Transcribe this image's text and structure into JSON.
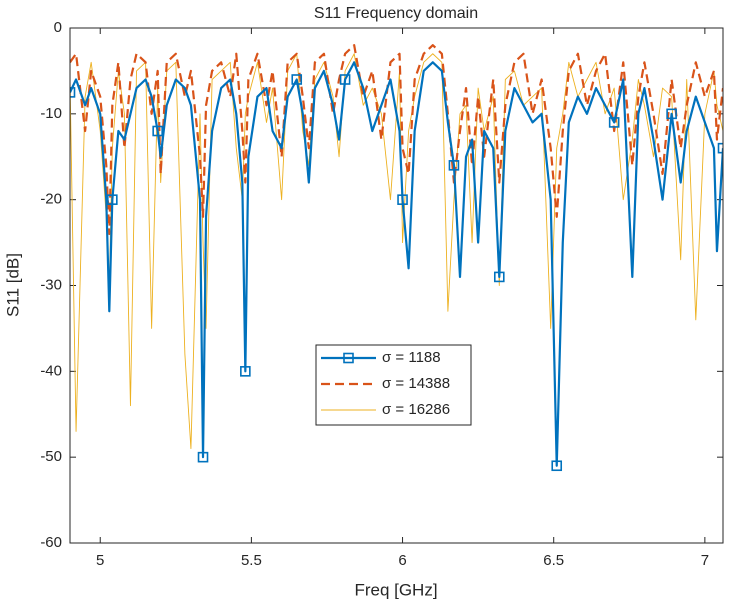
{
  "chart_data": {
    "type": "line",
    "title": "S11 Frequency domain",
    "x_label": "Freq [GHz]",
    "y_label": "S11 [dB]",
    "x": [
      4.9,
      4.92,
      4.95,
      4.97,
      5.0,
      5.02,
      5.03,
      5.04,
      5.06,
      5.08,
      5.1,
      5.12,
      5.15,
      5.17,
      5.19,
      5.2,
      5.22,
      5.25,
      5.28,
      5.3,
      5.33,
      5.34,
      5.35,
      5.37,
      5.4,
      5.43,
      5.45,
      5.47,
      5.48,
      5.49,
      5.52,
      5.55,
      5.57,
      5.6,
      5.62,
      5.65,
      5.67,
      5.69,
      5.71,
      5.74,
      5.77,
      5.79,
      5.81,
      5.84,
      5.87,
      5.9,
      5.93,
      5.96,
      5.99,
      6.0,
      6.02,
      6.04,
      6.07,
      6.1,
      6.13,
      6.15,
      6.17,
      6.19,
      6.21,
      6.23,
      6.25,
      6.27,
      6.3,
      6.32,
      6.34,
      6.37,
      6.4,
      6.43,
      6.46,
      6.49,
      6.51,
      6.53,
      6.55,
      6.58,
      6.61,
      6.64,
      6.67,
      6.7,
      6.73,
      6.76,
      6.78,
      6.8,
      6.83,
      6.86,
      6.89,
      6.92,
      6.94,
      6.97,
      7.0,
      7.03,
      7.04,
      7.06
    ],
    "series": [
      {
        "name": "σ = 1188",
        "color": "#0072BD",
        "style": "solid-marker",
        "values": [
          -7.5,
          -6,
          -9,
          -7,
          -10,
          -20,
          -33,
          -20,
          -12,
          -13,
          -10,
          -7,
          -6,
          -8,
          -12,
          -15,
          -9,
          -6,
          -7,
          -9,
          -20,
          -50,
          -22,
          -12,
          -7,
          -6,
          -10,
          -18,
          -40,
          -15,
          -8,
          -7,
          -12,
          -14,
          -8,
          -6,
          -10,
          -18,
          -7,
          -5,
          -9,
          -13,
          -6,
          -4,
          -7,
          -12,
          -9,
          -6,
          -12,
          -20,
          -28,
          -12,
          -5,
          -4,
          -5,
          -11,
          -16,
          -29,
          -15,
          -13,
          -25,
          -12,
          -14,
          -29,
          -12,
          -7,
          -9,
          -11,
          -10,
          -20,
          -51,
          -25,
          -11,
          -8,
          -10,
          -7,
          -9,
          -11,
          -6,
          -29,
          -10,
          -7,
          -13,
          -20,
          -10,
          -18,
          -12,
          -8,
          -11,
          -14,
          -26,
          -14
        ]
      },
      {
        "name": "σ = 14388",
        "color": "#D95319",
        "style": "dashed",
        "values": [
          -4,
          -3,
          -12,
          -5,
          -8,
          -16,
          -24,
          -9,
          -4,
          -14,
          -6,
          -3,
          -4,
          -10,
          -5,
          -17,
          -4,
          -3,
          -8,
          -5,
          -15,
          -22,
          -9,
          -5,
          -4,
          -8,
          -3,
          -12,
          -18,
          -6,
          -3,
          -9,
          -5,
          -15,
          -4,
          -3,
          -8,
          -14,
          -4,
          -3,
          -10,
          -6,
          -3,
          -2,
          -8,
          -5,
          -13,
          -4,
          -3,
          -14,
          -17,
          -6,
          -3,
          -2,
          -3,
          -10,
          -18,
          -12,
          -7,
          -16,
          -8,
          -15,
          -6,
          -18,
          -9,
          -4,
          -3,
          -10,
          -6,
          -14,
          -22,
          -12,
          -5,
          -3,
          -9,
          -5,
          -3,
          -12,
          -4,
          -16,
          -8,
          -4,
          -10,
          -17,
          -6,
          -14,
          -9,
          -4,
          -8,
          -5,
          -13,
          -7
        ]
      },
      {
        "name": "σ = 16286",
        "color": "#EDB120",
        "style": "thin",
        "values": [
          -6,
          -47,
          -8,
          -4,
          -12,
          -22,
          -30,
          -14,
          -5,
          -10,
          -44,
          -5,
          -4,
          -35,
          -7,
          -18,
          -5,
          -4,
          -38,
          -49,
          -10,
          -25,
          -35,
          -6,
          -5,
          -4,
          -14,
          -20,
          -10,
          -8,
          -4,
          -11,
          -7,
          -20,
          -5,
          -3,
          -12,
          -16,
          -6,
          -4,
          -8,
          -15,
          -5,
          -3,
          -9,
          -7,
          -10,
          -20,
          -5,
          -25,
          -12,
          -8,
          -4,
          -3,
          -4,
          -33,
          -20,
          -10,
          -9,
          -25,
          -7,
          -12,
          -8,
          -30,
          -6,
          -5,
          -9,
          -8,
          -7,
          -35,
          -14,
          -10,
          -4,
          -8,
          -6,
          -4,
          -10,
          -7,
          -20,
          -13,
          -6,
          -9,
          -15,
          -7,
          -8,
          -27,
          -6,
          -34,
          -10,
          -5,
          -9,
          -12
        ]
      }
    ],
    "xlim": [
      4.9,
      7.06
    ],
    "ylim": [
      -60,
      0
    ],
    "xticks": [
      5,
      5.5,
      6,
      6.5,
      7
    ],
    "yticks": [
      -60,
      -50,
      -40,
      -30,
      -20,
      -10,
      0
    ],
    "grid": false,
    "legend": "center"
  }
}
